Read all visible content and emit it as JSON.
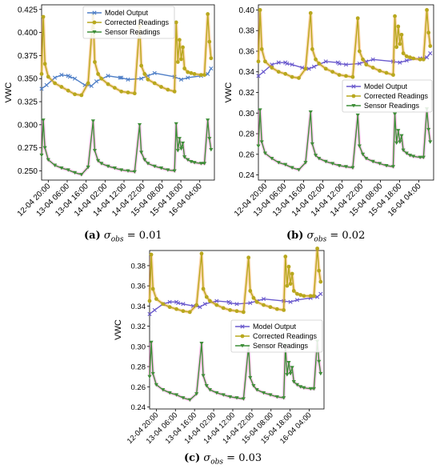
{
  "figure": {
    "captions": [
      {
        "tag": "(a)",
        "symbol": "σ",
        "sub": "obs",
        "rest": " = 0.01"
      },
      {
        "tag": "(b)",
        "symbol": "σ",
        "sub": "obs",
        "rest": " = 0.02"
      },
      {
        "tag": "(c)",
        "symbol": "σ",
        "sub": "obs",
        "rest": " = 0.03"
      }
    ]
  },
  "colors": {
    "model": "#6a5acd",
    "model_a": "#4f7fc7",
    "corrected": "#b8a81e",
    "sensor": "#3f8f3a",
    "highlight_orange": "#ff8c1a",
    "highlight_pink": "#ff66cc",
    "highlight_red": "#e8352a"
  },
  "chart_data": [
    {
      "type": "line",
      "ylabel": "VWC",
      "ylim": [
        0.24,
        0.43
      ],
      "yticks": [
        "0.250",
        "0.275",
        "0.300",
        "0.325",
        "0.350",
        "0.375",
        "0.400",
        "0.425"
      ],
      "xticks": [
        "12-04 20:00",
        "13-04 06:00",
        "13-04 16:00",
        "14-04 02:00",
        "14-04 12:00",
        "14-04 22:00",
        "15-04 08:00",
        "15-04 18:00",
        "16-04 04:00"
      ],
      "legend": [
        "Model Output",
        "Corrected Readings",
        "Sensor Readings"
      ],
      "legend_position": "top-center",
      "series": [
        {
          "name": "Model Output",
          "x": [
            0,
            1.5,
            4,
            6,
            8,
            8.5,
            10,
            13,
            15,
            16.5,
            20,
            23.6,
            24,
            26,
            30,
            32,
            34,
            40,
            42,
            44,
            48,
            50,
            51
          ],
          "y": [
            0.339,
            0.343,
            0.351,
            0.354,
            0.353,
            0.352,
            0.35,
            0.343,
            0.342,
            0.347,
            0.353,
            0.351,
            0.351,
            0.349,
            0.35,
            0.353,
            0.356,
            0.352,
            0.349,
            0.351,
            0.353,
            0.355,
            0.361
          ]
        },
        {
          "name": "Corrected Readings",
          "x": [
            0,
            0.5,
            1,
            2,
            4,
            6,
            8,
            10,
            12,
            14,
            15.5,
            16,
            17,
            18,
            20,
            22,
            24,
            26,
            28,
            29.5,
            30,
            31,
            32,
            34,
            36,
            38,
            40,
            40.5,
            41,
            41.5,
            42,
            42.5,
            43,
            44,
            45,
            46,
            48,
            49,
            50,
            50.5,
            51
          ],
          "y": [
            0.355,
            0.417,
            0.366,
            0.352,
            0.345,
            0.341,
            0.337,
            0.333,
            0.332,
            0.345,
            0.42,
            0.368,
            0.355,
            0.35,
            0.344,
            0.34,
            0.336,
            0.335,
            0.334,
            0.408,
            0.364,
            0.355,
            0.349,
            0.345,
            0.341,
            0.338,
            0.336,
            0.411,
            0.368,
            0.392,
            0.371,
            0.384,
            0.361,
            0.357,
            0.356,
            0.355,
            0.354,
            0.354,
            0.42,
            0.39,
            0.372
          ]
        },
        {
          "name": "Sensor Readings",
          "x": [
            0,
            0.5,
            1,
            2,
            4,
            6,
            8,
            10,
            12,
            14,
            15.5,
            16,
            17,
            18,
            20,
            22,
            24,
            26,
            28,
            29.5,
            30,
            31,
            32,
            34,
            36,
            38,
            40,
            40.5,
            41,
            41.5,
            42,
            42.5,
            43,
            44,
            45,
            46,
            48,
            49,
            50,
            50.5,
            51
          ],
          "y": [
            0.267,
            0.305,
            0.275,
            0.262,
            0.256,
            0.253,
            0.251,
            0.248,
            0.246,
            0.254,
            0.304,
            0.272,
            0.261,
            0.258,
            0.255,
            0.253,
            0.251,
            0.25,
            0.249,
            0.3,
            0.27,
            0.262,
            0.258,
            0.255,
            0.253,
            0.251,
            0.25,
            0.301,
            0.272,
            0.285,
            0.274,
            0.28,
            0.265,
            0.262,
            0.26,
            0.259,
            0.258,
            0.258,
            0.305,
            0.285,
            0.273
          ]
        }
      ]
    },
    {
      "type": "line",
      "ylabel": "VWC",
      "ylim": [
        0.235,
        0.405
      ],
      "yticks": [
        "0.24",
        "0.26",
        "0.28",
        "0.30",
        "0.32",
        "0.34",
        "0.36",
        "0.38",
        "0.40"
      ],
      "xticks": [
        "12-04 20:00",
        "13-04 06:00",
        "13-04 16:00",
        "14-04 02:00",
        "14-04 12:00",
        "14-04 22:00",
        "15-04 08:00",
        "15-04 18:00",
        "16-04 04:00"
      ],
      "legend": [
        "Model Output",
        "Corrected Readings",
        "Sensor Readings"
      ],
      "legend_position": "center-right",
      "series": [
        {
          "name": "Model Output",
          "x": [
            0,
            1.5,
            4,
            6,
            8,
            8.5,
            10,
            13,
            15,
            16.5,
            20,
            23.6,
            24,
            26,
            30,
            32,
            34,
            40,
            42,
            44,
            48,
            50,
            51
          ],
          "y": [
            0.336,
            0.34,
            0.347,
            0.349,
            0.349,
            0.348,
            0.347,
            0.344,
            0.343,
            0.345,
            0.35,
            0.349,
            0.348,
            0.347,
            0.348,
            0.35,
            0.352,
            0.35,
            0.349,
            0.351,
            0.353,
            0.354,
            0.358
          ]
        },
        {
          "name": "Corrected Readings",
          "x": [
            0,
            0.5,
            1,
            2,
            4,
            6,
            8,
            10,
            12,
            14,
            15.5,
            16,
            17,
            18,
            20,
            22,
            24,
            26,
            28,
            29.5,
            30,
            31,
            32,
            34,
            36,
            38,
            40,
            40.5,
            41,
            41.5,
            42,
            42.5,
            43,
            44,
            45,
            46,
            48,
            49,
            50,
            50.5,
            51
          ],
          "y": [
            0.35,
            0.4,
            0.362,
            0.35,
            0.344,
            0.34,
            0.338,
            0.335,
            0.334,
            0.343,
            0.397,
            0.362,
            0.352,
            0.348,
            0.343,
            0.34,
            0.337,
            0.336,
            0.335,
            0.392,
            0.36,
            0.352,
            0.347,
            0.344,
            0.341,
            0.339,
            0.337,
            0.394,
            0.364,
            0.384,
            0.367,
            0.376,
            0.358,
            0.355,
            0.354,
            0.353,
            0.352,
            0.352,
            0.4,
            0.378,
            0.365
          ]
        },
        {
          "name": "Sensor Readings",
          "x": [
            0,
            0.5,
            1,
            2,
            4,
            6,
            8,
            10,
            12,
            14,
            15.5,
            16,
            17,
            18,
            20,
            22,
            24,
            26,
            28,
            29.5,
            30,
            31,
            32,
            34,
            36,
            38,
            40,
            40.5,
            41,
            41.5,
            42,
            42.5,
            43,
            44,
            45,
            46,
            48,
            49,
            50,
            50.5,
            51
          ],
          "y": [
            0.268,
            0.303,
            0.272,
            0.261,
            0.256,
            0.252,
            0.25,
            0.247,
            0.245,
            0.252,
            0.301,
            0.27,
            0.259,
            0.256,
            0.253,
            0.251,
            0.249,
            0.248,
            0.247,
            0.298,
            0.268,
            0.26,
            0.256,
            0.253,
            0.251,
            0.249,
            0.248,
            0.299,
            0.271,
            0.283,
            0.272,
            0.278,
            0.264,
            0.261,
            0.259,
            0.258,
            0.257,
            0.257,
            0.304,
            0.284,
            0.272
          ]
        }
      ]
    },
    {
      "type": "line",
      "ylabel": "VWC",
      "ylim": [
        0.238,
        0.395
      ],
      "yticks": [
        "0.24",
        "0.26",
        "0.28",
        "0.30",
        "0.32",
        "0.34",
        "0.36",
        "0.38"
      ],
      "xticks": [
        "12-04 20:00",
        "13-04 06:00",
        "13-04 16:00",
        "14-04 02:00",
        "14-04 12:00",
        "14-04 22:00",
        "15-04 08:00",
        "15-04 18:00",
        "16-04 04:00"
      ],
      "legend": [
        "Model Output",
        "Corrected Readings",
        "Sensor Readings"
      ],
      "legend_position": "center-right",
      "series": [
        {
          "name": "Model Output",
          "x": [
            0,
            1.5,
            4,
            6,
            8,
            8.5,
            10,
            13,
            15,
            16.5,
            20,
            23.6,
            24,
            26,
            30,
            32,
            34,
            40,
            42,
            44,
            48,
            50,
            51
          ],
          "y": [
            0.332,
            0.336,
            0.342,
            0.344,
            0.344,
            0.343,
            0.342,
            0.34,
            0.339,
            0.342,
            0.345,
            0.344,
            0.343,
            0.342,
            0.343,
            0.345,
            0.347,
            0.345,
            0.344,
            0.346,
            0.348,
            0.349,
            0.352
          ]
        },
        {
          "name": "Corrected Readings",
          "x": [
            0,
            0.5,
            1,
            2,
            4,
            6,
            8,
            10,
            12,
            14,
            15.5,
            16,
            17,
            18,
            20,
            22,
            24,
            26,
            28,
            29.5,
            30,
            31,
            32,
            34,
            36,
            38,
            40,
            40.5,
            41,
            41.5,
            42,
            42.5,
            43,
            44,
            45,
            46,
            48,
            49,
            50,
            50.5,
            51
          ],
          "y": [
            0.345,
            0.391,
            0.357,
            0.347,
            0.342,
            0.339,
            0.337,
            0.335,
            0.334,
            0.341,
            0.392,
            0.357,
            0.349,
            0.345,
            0.341,
            0.338,
            0.336,
            0.335,
            0.334,
            0.388,
            0.355,
            0.348,
            0.344,
            0.341,
            0.339,
            0.337,
            0.336,
            0.389,
            0.36,
            0.379,
            0.362,
            0.372,
            0.355,
            0.352,
            0.351,
            0.35,
            0.35,
            0.35,
            0.397,
            0.375,
            0.364
          ]
        },
        {
          "name": "Sensor Readings",
          "x": [
            0,
            0.5,
            1,
            2,
            4,
            6,
            8,
            10,
            12,
            14,
            15.5,
            16,
            17,
            18,
            20,
            22,
            24,
            26,
            28,
            29.5,
            30,
            31,
            32,
            34,
            36,
            38,
            40,
            40.5,
            41,
            41.5,
            42,
            42.5,
            43,
            44,
            45,
            46,
            48,
            49,
            50,
            50.5,
            51
          ],
          "y": [
            0.27,
            0.304,
            0.273,
            0.262,
            0.257,
            0.254,
            0.252,
            0.249,
            0.247,
            0.253,
            0.303,
            0.271,
            0.261,
            0.257,
            0.254,
            0.252,
            0.25,
            0.249,
            0.248,
            0.3,
            0.269,
            0.261,
            0.257,
            0.254,
            0.252,
            0.25,
            0.249,
            0.301,
            0.272,
            0.284,
            0.273,
            0.279,
            0.265,
            0.262,
            0.26,
            0.259,
            0.258,
            0.258,
            0.305,
            0.285,
            0.273
          ]
        }
      ]
    }
  ]
}
